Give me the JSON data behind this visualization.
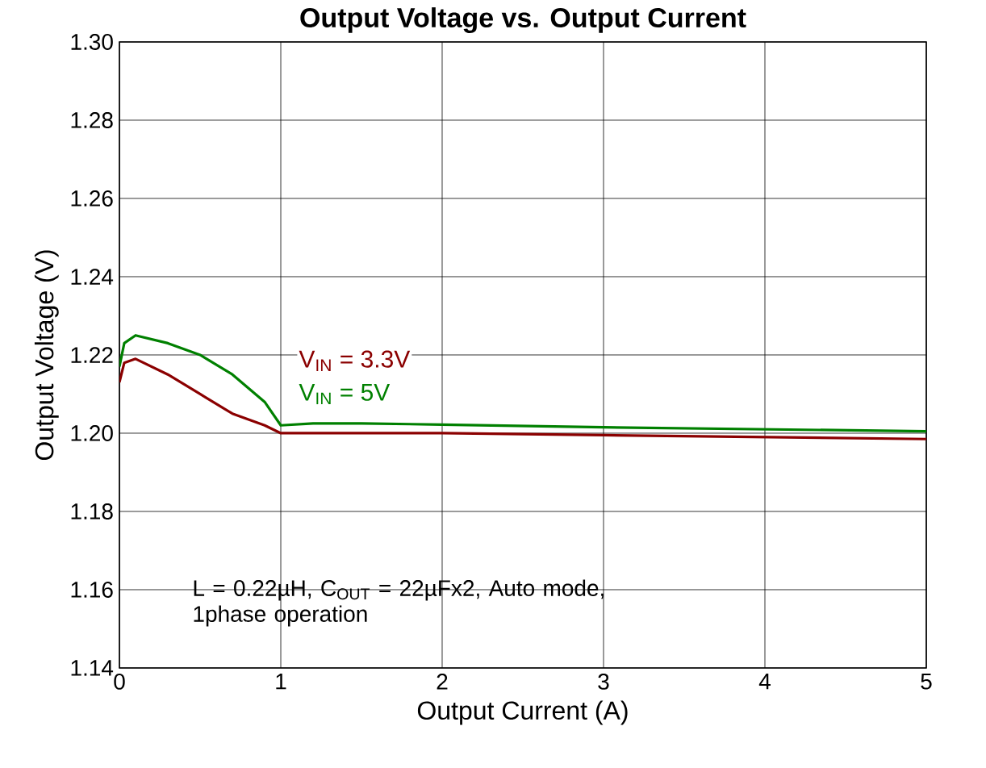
{
  "chart_data": {
    "type": "line",
    "title": "Output Voltage vs. Output Current",
    "xlabel": "Output Current (A)",
    "ylabel": "Output Voltage (V)",
    "xlim": [
      0,
      5
    ],
    "ylim": [
      1.14,
      1.3
    ],
    "xticks": [
      0,
      1,
      2,
      3,
      4,
      5
    ],
    "yticks": [
      {
        "value": 1.14,
        "label": "1.14"
      },
      {
        "value": 1.16,
        "label": "1.16"
      },
      {
        "value": 1.18,
        "label": "1.18"
      },
      {
        "value": 1.2,
        "label": "1.20"
      },
      {
        "value": 1.22,
        "label": "1.22"
      },
      {
        "value": 1.24,
        "label": "1.24"
      },
      {
        "value": 1.26,
        "label": "1.26"
      },
      {
        "value": 1.28,
        "label": "1.28"
      },
      {
        "value": 1.3,
        "label": "1.30"
      }
    ],
    "grid": true,
    "series": [
      {
        "name": "V$_{IN}$ = 3.3V",
        "color": "#8b0000",
        "x": [
          0,
          0.03,
          0.1,
          0.3,
          0.5,
          0.7,
          0.9,
          1.0,
          1.5,
          2,
          3,
          4,
          5
        ],
        "values": [
          1.213,
          1.218,
          1.219,
          1.215,
          1.21,
          1.205,
          1.202,
          1.2,
          1.2,
          1.2,
          1.1995,
          1.199,
          1.1985
        ]
      },
      {
        "name": "V$_{IN}$ = 5V",
        "color": "#008000",
        "x": [
          0,
          0.03,
          0.1,
          0.3,
          0.5,
          0.7,
          0.9,
          1.0,
          1.2,
          1.5,
          2,
          3,
          4,
          5
        ],
        "values": [
          1.217,
          1.223,
          1.225,
          1.223,
          1.22,
          1.215,
          1.208,
          1.202,
          1.2025,
          1.2025,
          1.2022,
          1.2015,
          1.201,
          1.2005
        ]
      }
    ],
    "annotations": [
      "L = 0.22µH, C$_{OUT}$ = 22µFx2, Auto mode, 1phase operation"
    ]
  }
}
